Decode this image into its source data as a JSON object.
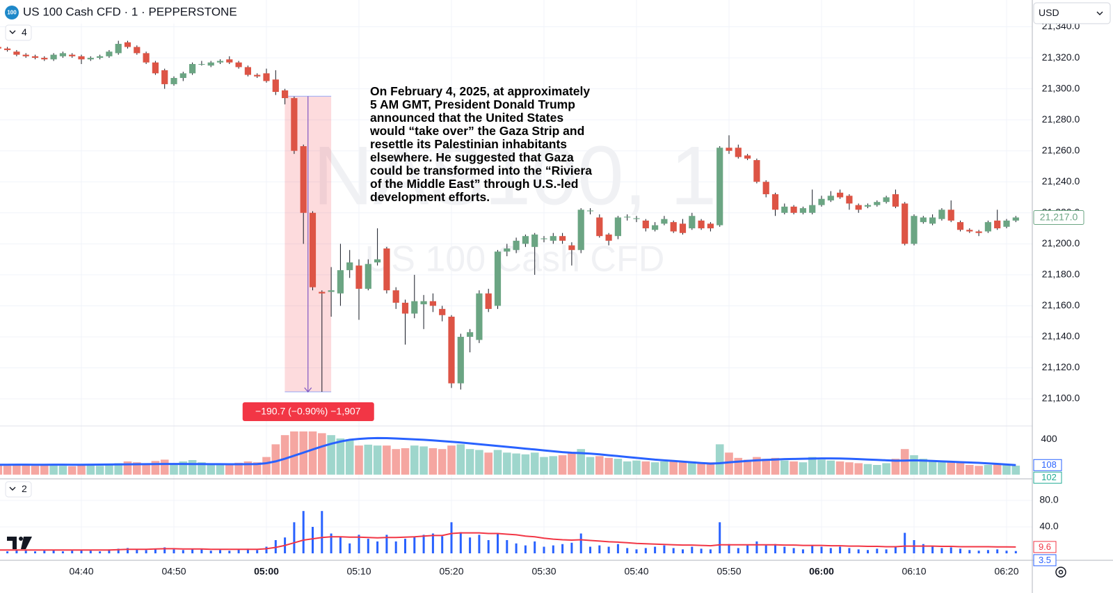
{
  "chart_data": {
    "type": "candlestick",
    "badge": "100",
    "title": "US 100 Cash CFD · 1 · PEPPERSTONE",
    "currency": "USD",
    "watermark": [
      "NAS100, 1",
      "US 100 Cash CFD"
    ],
    "pane_counts": [
      4,
      2
    ],
    "categories": [
      null,
      null,
      null,
      null,
      null,
      null,
      null,
      null,
      null,
      "04:40",
      null,
      null,
      null,
      null,
      null,
      null,
      null,
      null,
      null,
      "04:50",
      null,
      null,
      null,
      null,
      null,
      null,
      null,
      null,
      null,
      "05:00",
      null,
      null,
      null,
      null,
      null,
      null,
      null,
      null,
      null,
      "05:10",
      null,
      null,
      null,
      null,
      null,
      null,
      null,
      null,
      null,
      "05:20",
      null,
      null,
      null,
      null,
      null,
      null,
      null,
      null,
      null,
      "05:30",
      null,
      null,
      null,
      null,
      null,
      null,
      null,
      null,
      null,
      "05:40",
      null,
      null,
      null,
      null,
      null,
      null,
      null,
      null,
      null,
      "05:50",
      null,
      null,
      null,
      null,
      null,
      null,
      null,
      null,
      null,
      "06:00",
      null,
      null,
      null,
      null,
      null,
      null,
      null,
      null,
      null,
      "06:10",
      null,
      null,
      null,
      null,
      null,
      null,
      null,
      null,
      null,
      "06:20",
      null
    ],
    "open": [
      21327,
      21326,
      21324,
      21322,
      21321,
      21320,
      21319,
      21321,
      21322,
      21321,
      21319,
      21320,
      21321,
      21323,
      21330,
      21327,
      21323,
      21317,
      21312,
      21303,
      21307,
      21310,
      21316,
      21315,
      21317,
      21319,
      21317,
      21314,
      21309,
      21310,
      21306,
      21299,
      21294,
      21263,
      21220,
      21169,
      21169,
      21168,
      21183,
      21186,
      21171,
      21188,
      21197,
      21170,
      21162,
      21155,
      21161,
      21163,
      21158,
      21153,
      21110,
      21140,
      21138,
      21168,
      21160,
      21195,
      21196,
      21200,
      21198,
      21203,
      21202,
      21205,
      21199,
      21196,
      21221,
      21217,
      21206,
      21205,
      21217,
      21216,
      21215,
      21209,
      21213,
      21214,
      21213,
      21210,
      21215,
      21213,
      21212,
      21262,
      21262,
      21257,
      21254,
      21240,
      21232,
      21220,
      21224,
      21220,
      21220,
      21225,
      21228,
      21233,
      21231,
      21225,
      21224,
      21225,
      21227,
      21232,
      21226,
      21200,
      21214,
      21213,
      21216,
      21222,
      21214,
      21209,
      21208,
      21208,
      21215,
      21211,
      21215
    ],
    "high": [
      21328,
      21327,
      21325,
      21323,
      21322,
      21321,
      21323,
      21324,
      21323,
      21322,
      21321,
      21322,
      21325,
      21331,
      21331,
      21328,
      21324,
      21318,
      21313,
      21308,
      21311,
      21317,
      21318,
      21318,
      21319,
      21321,
      21318,
      21315,
      21310,
      21313,
      21312,
      21300,
      21295,
      21264,
      21221,
      21170,
      21185,
      21200,
      21196,
      21190,
      21190,
      21210,
      21198,
      21172,
      21164,
      21180,
      21167,
      21168,
      21160,
      21154,
      21142,
      21145,
      21170,
      21171,
      21196,
      21200,
      21204,
      21206,
      21207,
      21205,
      21207,
      21207,
      21201,
      21223,
      21223,
      21219,
      21207,
      21218,
      21219,
      21218,
      21216,
      21214,
      21218,
      21215,
      21216,
      21220,
      21216,
      21214,
      21263,
      21270,
      21264,
      21258,
      21255,
      21241,
      21233,
      21226,
      21225,
      21224,
      21235,
      21231,
      21234,
      21235,
      21232,
      21226,
      21226,
      21228,
      21231,
      21235,
      21227,
      21219,
      21218,
      21219,
      21223,
      21228,
      21215,
      21210,
      21209,
      21215,
      21222,
      21216,
      21218
    ],
    "low": [
      21325,
      21324,
      21321,
      21320,
      21319,
      21318,
      21318,
      21320,
      21320,
      21316,
      21318,
      21319,
      21320,
      21322,
      21326,
      21322,
      21316,
      21309,
      21300,
      21302,
      21305,
      21309,
      21315,
      21314,
      21316,
      21316,
      21313,
      21308,
      21307,
      21304,
      21296,
      21290,
      21258,
      21200,
      21170,
      21104.5,
      21153,
      21160,
      21178,
      21151,
      21170,
      21186,
      21168,
      21158,
      21135,
      21152,
      21145,
      21156,
      21150,
      21107,
      21106,
      21130,
      21136,
      21156,
      21158,
      21192,
      21194,
      21198,
      21180,
      21201,
      21200,
      21200,
      21186,
      21194,
      21219,
      21204,
      21199,
      21203,
      21215,
      21214,
      21208,
      21208,
      21212,
      21207,
      21206,
      21209,
      21209,
      21208,
      21211,
      21258,
      21255,
      21254,
      21239,
      21230,
      21218,
      21219,
      21219,
      21219,
      21219,
      21224,
      21227,
      21229,
      21222,
      21220,
      21223,
      21224,
      21226,
      21223,
      21199,
      21199,
      21213,
      21212,
      21215,
      21214,
      21208,
      21207,
      21205,
      21207,
      21209,
      21210,
      21214
    ],
    "close": [
      21326,
      21325,
      21322,
      21321,
      21320,
      21319,
      21322,
      21323,
      21321,
      21319,
      21320,
      21321,
      21324,
      21329,
      21327,
      21323,
      21317,
      21310,
      21303,
      21307,
      21310,
      21316,
      21316,
      21317,
      21318,
      21317,
      21314,
      21309,
      21308,
      21305,
      21298,
      21294,
      21260,
      21220,
      21172,
      21168,
      21170,
      21183,
      21188,
      21171,
      21187,
      21190,
      21170,
      21162,
      21155,
      21163,
      21163,
      21160,
      21154,
      21110,
      21140,
      21143,
      21168,
      21158,
      21195,
      21197,
      21202,
      21205,
      21206,
      21203.5,
      21205,
      21202,
      21196,
      21222,
      21221.5,
      21205,
      21202,
      21217,
      21217.5,
      21216.5,
      21210,
      21212,
      21216,
      21208,
      21207,
      21218,
      21210,
      21210,
      21262,
      21260,
      21256,
      21255,
      21240,
      21232,
      21222,
      21224,
      21220,
      21223,
      21225,
      21229,
      21231,
      21230,
      21226,
      21222,
      21225,
      21227,
      21230,
      21224,
      21200,
      21218,
      21217,
      21217,
      21222,
      21215,
      21209,
      21208,
      21207,
      21214,
      21210,
      21215,
      21217
    ],
    "up_color": "#6ba583",
    "down_color": "#dd5445",
    "ylim": [
      21082.5,
      21357.3
    ],
    "yticks": [
      {
        "value": 21100,
        "label": "21,100.0"
      },
      {
        "value": 21120,
        "label": "21,120.0"
      },
      {
        "value": 21140,
        "label": "21,140.0"
      },
      {
        "value": 21160,
        "label": "21,160.0"
      },
      {
        "value": 21180,
        "label": "21,180.0"
      },
      {
        "value": 21200,
        "label": "21,200.0"
      },
      {
        "value": 21220,
        "label": "21,220.0"
      },
      {
        "value": 21240,
        "label": "21,240.0"
      },
      {
        "value": 21260,
        "label": "21,260.0"
      },
      {
        "value": 21280,
        "label": "21,280.0"
      },
      {
        "value": 21300,
        "label": "21,300.0"
      },
      {
        "value": 21320,
        "label": "21,320.0"
      },
      {
        "value": 21340,
        "label": "21,340.0"
      }
    ],
    "grid": true,
    "last_price": {
      "value": 21217,
      "label": "21,217.0"
    },
    "measure": {
      "top": 21295.2,
      "bottom": 21104.5,
      "label": "−190.7 (−0.90%) −1,907"
    },
    "annotation": [
      "On February 4, 2025, at approximately",
      "5 AM GMT, President Donald Trump",
      "announced that the United States",
      "would “take over” the Gaza Strip and",
      "resettle its Palestinian inhabitants",
      "elsewhere. He suggested that Gaza",
      "could be transformed into the “Riviera",
      "of the Middle East” through U.S.-led",
      "development efforts."
    ],
    "volume": {
      "values": [
        110,
        100,
        120,
        105,
        100,
        110,
        115,
        100,
        95,
        110,
        105,
        100,
        120,
        130,
        150,
        140,
        130,
        155,
        170,
        130,
        150,
        165,
        140,
        120,
        130,
        125,
        135,
        150,
        140,
        200,
        344,
        448,
        490,
        490,
        490,
        470,
        448,
        410,
        400,
        330,
        340,
        330,
        330,
        290,
        300,
        330,
        320,
        300,
        290,
        330,
        344,
        290,
        280,
        250,
        280,
        250,
        240,
        230,
        250,
        200,
        210,
        220,
        240,
        290,
        200,
        210,
        190,
        180,
        150,
        160,
        150,
        140,
        150,
        160,
        140,
        150,
        130,
        140,
        344,
        250,
        190,
        170,
        200,
        180,
        190,
        160,
        150,
        140,
        200,
        170,
        160,
        150,
        140,
        130,
        120,
        110,
        130,
        180,
        290,
        220,
        180,
        150,
        140,
        150,
        140,
        110,
        100,
        110,
        120,
        110,
        102
      ],
      "ma": [
        112,
        112,
        113,
        113,
        112,
        112,
        113,
        113,
        112,
        112,
        113,
        114,
        115,
        116,
        117,
        118,
        119,
        120,
        121,
        121,
        121,
        120,
        120,
        119,
        119,
        118,
        118,
        119,
        120,
        130,
        150,
        180,
        215,
        250,
        285,
        320,
        350,
        375,
        395,
        405,
        412,
        415,
        414,
        410,
        405,
        400,
        395,
        388,
        380,
        372,
        365,
        355,
        345,
        335,
        325,
        315,
        305,
        295,
        285,
        275,
        265,
        255,
        248,
        244,
        238,
        230,
        220,
        210,
        200,
        190,
        180,
        170,
        162,
        155,
        148,
        140,
        132,
        125,
        130,
        140,
        148,
        155,
        162,
        168,
        172,
        176,
        178,
        180,
        182,
        184,
        184,
        183,
        180,
        176,
        172,
        168,
        162,
        158,
        160,
        162,
        160,
        156,
        150,
        146,
        142,
        138,
        134,
        128,
        122,
        115,
        108
      ],
      "ylim": [
        -32,
        552
      ],
      "yticks": [
        400
      ],
      "up_color": "#9ed6cc",
      "down_color": "#f5a6a1",
      "ma_color": "#2962ff"
    },
    "indicator": {
      "bars": [
        4,
        3,
        5,
        4,
        3,
        4,
        5,
        3,
        4,
        5,
        4,
        3,
        6,
        7,
        8,
        6,
        5,
        7,
        9,
        6,
        5,
        7,
        6,
        4,
        5,
        4,
        6,
        7,
        5,
        10,
        20,
        24,
        47,
        64,
        40,
        64,
        30,
        25,
        15,
        28,
        22,
        18,
        28,
        18,
        22,
        25,
        28,
        30,
        26,
        47,
        32,
        24,
        28,
        20,
        30,
        20,
        15,
        12,
        18,
        10,
        12,
        14,
        16,
        30,
        10,
        12,
        10,
        14,
        8,
        6,
        8,
        10,
        12,
        8,
        6,
        10,
        7,
        6,
        47,
        14,
        8,
        12,
        18,
        12,
        14,
        10,
        8,
        6,
        12,
        10,
        8,
        10,
        8,
        6,
        5,
        7,
        6,
        10,
        31,
        20,
        14,
        10,
        8,
        9,
        7,
        5,
        4,
        5,
        6,
        4,
        3.5
      ],
      "line": [
        5,
        5,
        5,
        5,
        5,
        5,
        5,
        5,
        5,
        5,
        5,
        5,
        5,
        5.5,
        6,
        6,
        6,
        6.5,
        7,
        7,
        6.5,
        6.5,
        6.5,
        6,
        6,
        6,
        6,
        6,
        6,
        7,
        9,
        12,
        16,
        20,
        22,
        24,
        25,
        25,
        24.5,
        24.5,
        24,
        23.5,
        24,
        24,
        24.5,
        25,
        26,
        27,
        27,
        30,
        31,
        31,
        31,
        30,
        30,
        29,
        28,
        26,
        25,
        23,
        21.5,
        20.5,
        20,
        20.5,
        19.5,
        18.5,
        17.5,
        17,
        16,
        15,
        14.5,
        14,
        13.5,
        13,
        12.5,
        12.5,
        12,
        11.5,
        13,
        13,
        13,
        13,
        13,
        13,
        13,
        12.5,
        12.5,
        12,
        12,
        12,
        11.5,
        11.5,
        11,
        11,
        10.5,
        10.5,
        10,
        10,
        11,
        11,
        11,
        11,
        10.5,
        10.5,
        10,
        10,
        10,
        10,
        9.8,
        9.7,
        9.6
      ],
      "ylim": [
        -10.5,
        112.6
      ],
      "yticks": [
        {
          "value": 40,
          "label": "40.0"
        },
        {
          "value": 80,
          "label": "80.0"
        }
      ],
      "bar_color": "#2962ff",
      "line_color": "#f23645"
    }
  }
}
